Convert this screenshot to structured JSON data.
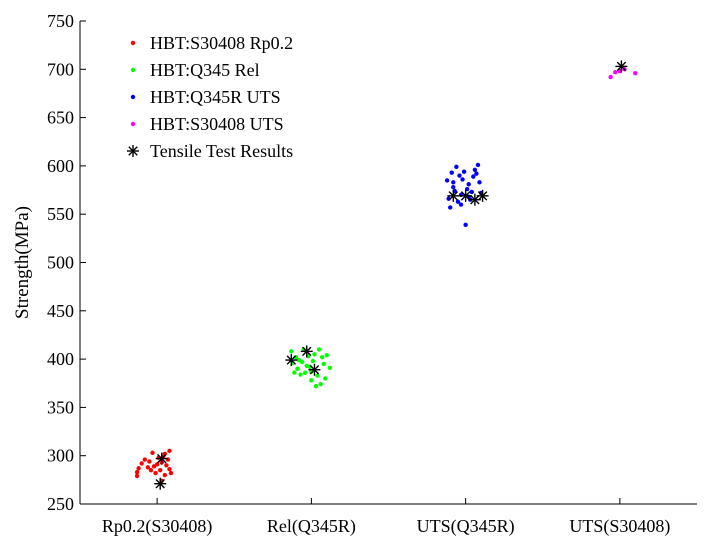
{
  "chart_data": {
    "type": "scatter",
    "title": "",
    "xlabel": "",
    "ylabel": "Strength(MPa)",
    "ylim": [
      250,
      750
    ],
    "yticks": [
      250,
      300,
      350,
      400,
      450,
      500,
      550,
      600,
      650,
      700,
      750
    ],
    "categories": [
      "Rp0.2(S30408)",
      "Rel(Q345R)",
      "UTS(Q345R)",
      "UTS(S30408)"
    ],
    "grid": false,
    "legend_position": "top-left",
    "series": [
      {
        "name": "HBT:S30408 Rp0.2",
        "color": "#ff0000",
        "marker": "dot",
        "points": [
          {
            "x": 0.87,
            "y": 283
          },
          {
            "x": 0.87,
            "y": 279
          },
          {
            "x": 0.88,
            "y": 287
          },
          {
            "x": 0.9,
            "y": 292
          },
          {
            "x": 0.92,
            "y": 296
          },
          {
            "x": 0.94,
            "y": 288
          },
          {
            "x": 0.95,
            "y": 294
          },
          {
            "x": 0.97,
            "y": 303
          },
          {
            "x": 0.98,
            "y": 289
          },
          {
            "x": 0.99,
            "y": 282
          },
          {
            "x": 1.0,
            "y": 291
          },
          {
            "x": 1.01,
            "y": 298
          },
          {
            "x": 1.02,
            "y": 285
          },
          {
            "x": 1.03,
            "y": 293
          },
          {
            "x": 1.04,
            "y": 299
          },
          {
            "x": 1.05,
            "y": 280
          },
          {
            "x": 1.06,
            "y": 290
          },
          {
            "x": 1.07,
            "y": 296
          },
          {
            "x": 1.08,
            "y": 305
          },
          {
            "x": 1.08,
            "y": 286
          },
          {
            "x": 1.09,
            "y": 282
          },
          {
            "x": 1.03,
            "y": 274
          },
          {
            "x": 1.05,
            "y": 302
          },
          {
            "x": 0.96,
            "y": 285
          }
        ]
      },
      {
        "name": "HBT:Q345 Rel",
        "color": "#00ff00",
        "marker": "dot",
        "points": [
          {
            "x": 1.87,
            "y": 408
          },
          {
            "x": 1.88,
            "y": 396
          },
          {
            "x": 1.89,
            "y": 386
          },
          {
            "x": 1.9,
            "y": 402
          },
          {
            "x": 1.91,
            "y": 390
          },
          {
            "x": 1.93,
            "y": 384
          },
          {
            "x": 1.94,
            "y": 397
          },
          {
            "x": 1.95,
            "y": 410
          },
          {
            "x": 1.96,
            "y": 386
          },
          {
            "x": 1.97,
            "y": 393
          },
          {
            "x": 1.98,
            "y": 403
          },
          {
            "x": 2.0,
            "y": 378
          },
          {
            "x": 2.0,
            "y": 387
          },
          {
            "x": 2.01,
            "y": 398
          },
          {
            "x": 2.02,
            "y": 405
          },
          {
            "x": 2.03,
            "y": 372
          },
          {
            "x": 2.04,
            "y": 383
          },
          {
            "x": 2.05,
            "y": 410
          },
          {
            "x": 2.06,
            "y": 374
          },
          {
            "x": 2.07,
            "y": 402
          },
          {
            "x": 2.08,
            "y": 395
          },
          {
            "x": 2.09,
            "y": 380
          },
          {
            "x": 2.1,
            "y": 404
          },
          {
            "x": 2.12,
            "y": 391
          },
          {
            "x": 1.99,
            "y": 392
          },
          {
            "x": 1.92,
            "y": 399
          }
        ]
      },
      {
        "name": "HBT:Q345R UTS",
        "color": "#0000ff",
        "marker": "dot",
        "points": [
          {
            "x": 2.88,
            "y": 585
          },
          {
            "x": 2.89,
            "y": 566
          },
          {
            "x": 2.9,
            "y": 557
          },
          {
            "x": 2.91,
            "y": 593
          },
          {
            "x": 2.92,
            "y": 578
          },
          {
            "x": 2.93,
            "y": 574
          },
          {
            "x": 2.94,
            "y": 599
          },
          {
            "x": 2.95,
            "y": 563
          },
          {
            "x": 2.96,
            "y": 590
          },
          {
            "x": 2.97,
            "y": 570
          },
          {
            "x": 2.98,
            "y": 586
          },
          {
            "x": 2.99,
            "y": 594
          },
          {
            "x": 3.0,
            "y": 539
          },
          {
            "x": 3.01,
            "y": 576
          },
          {
            "x": 3.02,
            "y": 581
          },
          {
            "x": 3.03,
            "y": 565
          },
          {
            "x": 3.04,
            "y": 573
          },
          {
            "x": 3.05,
            "y": 589
          },
          {
            "x": 3.06,
            "y": 596
          },
          {
            "x": 3.07,
            "y": 592
          },
          {
            "x": 3.08,
            "y": 601
          },
          {
            "x": 3.09,
            "y": 583
          },
          {
            "x": 3.1,
            "y": 572
          },
          {
            "x": 2.97,
            "y": 560
          },
          {
            "x": 3.02,
            "y": 568
          },
          {
            "x": 2.92,
            "y": 583
          }
        ]
      },
      {
        "name": "HBT:S30408 UTS",
        "color": "#ff00ff",
        "marker": "dot",
        "points": [
          {
            "x": 3.94,
            "y": 692
          },
          {
            "x": 3.97,
            "y": 697
          },
          {
            "x": 4.0,
            "y": 698
          },
          {
            "x": 4.03,
            "y": 700
          },
          {
            "x": 4.1,
            "y": 696
          }
        ]
      },
      {
        "name": "Tensile Test Results",
        "color": "#000000",
        "marker": "asterisk",
        "points": [
          {
            "x": 1.03,
            "y": 297
          },
          {
            "x": 1.02,
            "y": 271
          },
          {
            "x": 1.87,
            "y": 399
          },
          {
            "x": 1.97,
            "y": 408
          },
          {
            "x": 2.02,
            "y": 389
          },
          {
            "x": 2.92,
            "y": 569
          },
          {
            "x": 3.0,
            "y": 569
          },
          {
            "x": 3.06,
            "y": 565
          },
          {
            "x": 3.11,
            "y": 569
          },
          {
            "x": 4.01,
            "y": 703
          }
        ]
      }
    ]
  }
}
